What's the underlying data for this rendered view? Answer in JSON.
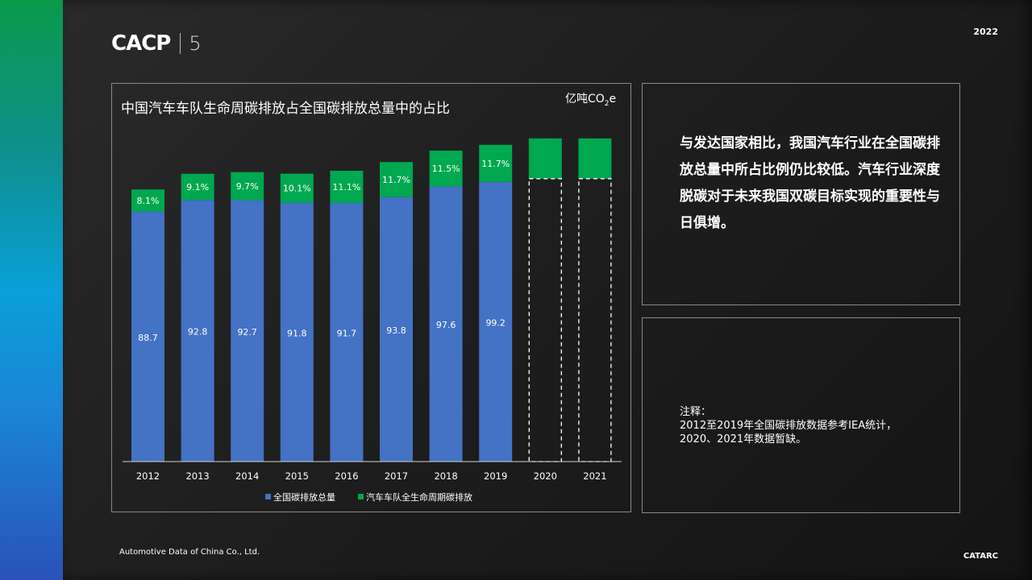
{
  "header": {
    "logo_text": "CACP",
    "logo_number": "5",
    "year": "2022"
  },
  "footer": {
    "company": "Automotive Data of China Co., Ltd.",
    "brand": "CATARC"
  },
  "info": {
    "text": "与发达国家相比，我国汽车行业在全国碳排放总量中所占比例仍比较低。汽车行业深度脱碳对于未来我国双碳目标实现的重要性与日俱增。"
  },
  "note": {
    "lines": [
      "注释：",
      "2012至2019年全国碳排放数据参考IEA统计，",
      "2020、2021年数据暂缺。"
    ]
  },
  "chart_data": {
    "type": "bar",
    "stacked": true,
    "title": "中国汽车车队生命周碳排放占全国碳排放总量中的占比",
    "unit": {
      "prefix": "亿吨CO",
      "sub": "2",
      "suffix": "e"
    },
    "categories": [
      "2012",
      "2013",
      "2014",
      "2015",
      "2016",
      "2017",
      "2018",
      "2019",
      "2020",
      "2021"
    ],
    "series": [
      {
        "name": "全国碳排放总量",
        "color": "#4472c4",
        "values": [
          88.7,
          92.8,
          92.7,
          91.8,
          91.7,
          93.8,
          97.6,
          99.2,
          null,
          null
        ],
        "labels": [
          "88.7",
          "92.8",
          "92.7",
          "91.8",
          "91.7",
          "93.8",
          "97.6",
          "99.2",
          "",
          ""
        ]
      },
      {
        "name": "汽车车队全生命周期碳排放",
        "color": "#00a84f",
        "labels": [
          "8.1%",
          "9.1%",
          "9.7%",
          "10.1%",
          "11.1%",
          "11.7%",
          "11.5%",
          "11.7%",
          "",
          ""
        ]
      }
    ],
    "placeholder_style": "dashed-outline",
    "legend_position": "bottom",
    "grid": false
  }
}
